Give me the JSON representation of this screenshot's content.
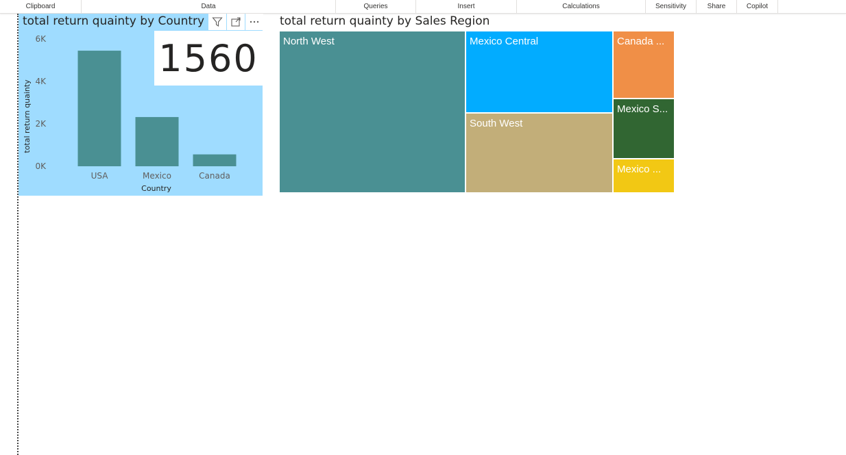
{
  "ribbon": {
    "groups": [
      "Clipboard",
      "Data",
      "Queries",
      "Insert",
      "Calculations",
      "Sensitivity",
      "Share",
      "Copilot"
    ]
  },
  "bar_visual": {
    "title": "total return quainty by Country",
    "card_value": "1560",
    "icons": [
      "filter-icon",
      "focus-mode-icon",
      "more-options-icon"
    ]
  },
  "treemap_visual": {
    "title": "total return quainty by Sales Region",
    "labels": {
      "north_west": "North West",
      "mexico_central": "Mexico Central",
      "south_west": "South West",
      "canada": "Canada ...",
      "mexico_s": "Mexico S...",
      "mexico_other": "Mexico ..."
    }
  },
  "colors": {
    "bar": "#4a9093",
    "visual_bg": "#9fdcff",
    "north_west": "#4a9093",
    "mexico_central": "#02acff",
    "south_west": "#c2ae79",
    "canada": "#f08f47",
    "mexico_s": "#316632",
    "mexico_other": "#f2c814"
  },
  "chart_data": [
    {
      "type": "bar",
      "title": "total return quainty by Country",
      "xlabel": "Country",
      "ylabel": "total return quainty",
      "categories": [
        "USA",
        "Mexico",
        "Canada"
      ],
      "values": [
        5450,
        2320,
        560
      ],
      "ylim": [
        0,
        6000
      ],
      "yticks": [
        "0K",
        "2K",
        "4K",
        "6K"
      ],
      "ytick_values": [
        0,
        2000,
        4000,
        6000
      ],
      "grid": false
    },
    {
      "type": "treemap",
      "title": "total return quainty by Sales Region",
      "categories": [
        "North West",
        "Mexico Central",
        "South West",
        "Canada ...",
        "Mexico S...",
        "Mexico ..."
      ]
    }
  ]
}
